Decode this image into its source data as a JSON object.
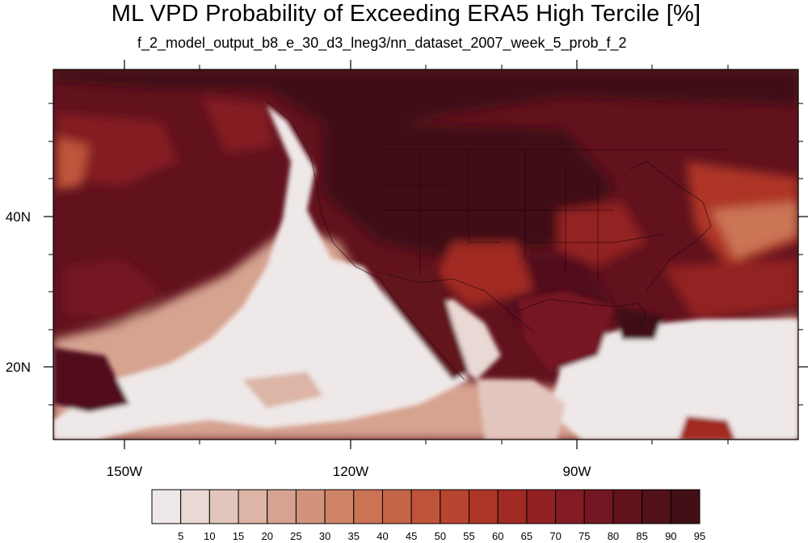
{
  "title": "ML VPD Probability of Exceeding ERA5 High Tercile [%]",
  "subtitle": "f_2_model_output_b8_e_30_d3_lneg3/nn_dataset_2007_week_5_prob_f_2",
  "map": {
    "longitude_labels": [
      "150W",
      "120W",
      "90W"
    ],
    "latitude_labels": [
      "40N",
      "20N"
    ]
  },
  "colorbar": {
    "labels": [
      "5",
      "10",
      "15",
      "20",
      "25",
      "30",
      "35",
      "40",
      "45",
      "50",
      "55",
      "60",
      "65",
      "70",
      "75",
      "80",
      "85",
      "90",
      "95"
    ],
    "colors": [
      "#efe8e8",
      "#e9d8d3",
      "#e2c6bd",
      "#dcb5a6",
      "#d6a390",
      "#d2937c",
      "#cf8467",
      "#cb7455",
      "#c56547",
      "#bf543a",
      "#b8452f",
      "#ae3626",
      "#a12a24",
      "#932023",
      "#841a23",
      "#741621",
      "#62121d",
      "#51101a",
      "#401016"
    ]
  }
}
